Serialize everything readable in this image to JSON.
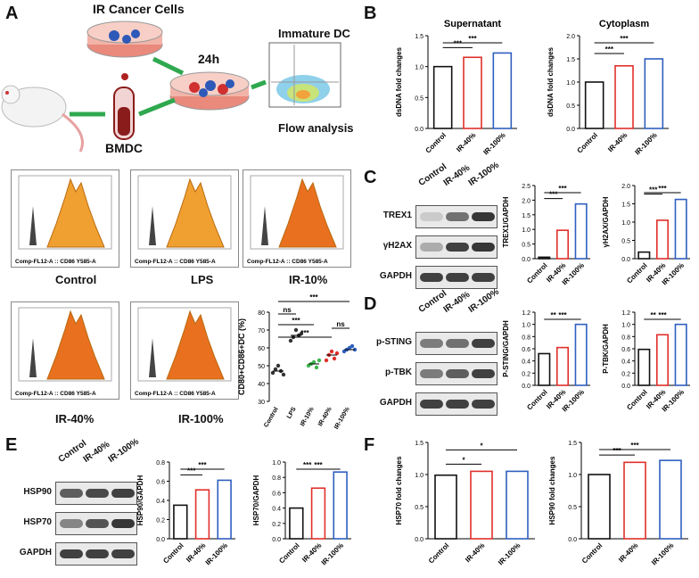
{
  "colors": {
    "control": "#111111",
    "ir40": "#e0302b",
    "ir100": "#2f5fbf",
    "arrow": "#2fa84f",
    "lps": "#333333",
    "ir10": "#3fb34f"
  },
  "panelA": {
    "letter": "A",
    "labels": {
      "cells": "IR Cancer Cells",
      "time": "24h",
      "bmdc": "BMDC",
      "idc": "Immature DC",
      "flow": "Flow analysis"
    },
    "histograms": [
      {
        "label": "Control",
        "axis": "Comp-FL12-A :: CD86 Y585-A"
      },
      {
        "label": "LPS",
        "axis": "Comp-FL12-A :: CD86 Y585-A"
      },
      {
        "label": "IR-10%",
        "axis": "Comp-FL12-A :: CD86 Y585-A"
      },
      {
        "label": "IR-40%",
        "axis": "Comp-FL12-A :: CD86 Y585-A"
      },
      {
        "label": "IR-100%",
        "axis": "Comp-FL12-A :: CD86 Y585-A"
      }
    ],
    "scatter": {
      "ylabel": "CD80+CD86+DC (%)",
      "ylim": [
        30,
        80
      ],
      "yticks": [
        "30",
        "40",
        "50",
        "60",
        "70",
        "80"
      ],
      "groups": [
        "Control",
        "LPS",
        "IR-10%",
        "IR-40%",
        "IR-100%"
      ],
      "points": [
        [
          46,
          48,
          50,
          47,
          45
        ],
        [
          64,
          66,
          70,
          67,
          68
        ],
        [
          50,
          51,
          52,
          49,
          53
        ],
        [
          53,
          56,
          58,
          54,
          57
        ],
        [
          58,
          59,
          60,
          61,
          59
        ]
      ],
      "means": [
        47,
        67,
        51,
        56,
        59
      ],
      "sig": [
        "***",
        "ns",
        "***",
        "***",
        "ns"
      ]
    }
  },
  "panelB": {
    "letter": "B",
    "charts": [
      {
        "title": "Supernatant",
        "ylabel": "dsDNA fold changes",
        "ylim": [
          0,
          1.5
        ],
        "yticks": [
          "0.0",
          "0.5",
          "1.0",
          "1.5"
        ],
        "categories": [
          "Control",
          "IR-40%",
          "IR-100%"
        ],
        "values": [
          1.0,
          1.15,
          1.22
        ],
        "sig": [
          "***",
          "***"
        ]
      },
      {
        "title": "Cytoplasm",
        "ylabel": "dsDNA fold changes",
        "ylim": [
          0,
          2.0
        ],
        "yticks": [
          "0.0",
          "0.5",
          "1.0",
          "1.5",
          "2.0"
        ],
        "categories": [
          "Control",
          "IR-40%",
          "IR-100%"
        ],
        "values": [
          1.0,
          1.35,
          1.5
        ],
        "sig": [
          "***",
          "***"
        ]
      }
    ]
  },
  "panelC": {
    "letter": "C",
    "lanes": [
      "Control",
      "IR-40%",
      "IR-100%"
    ],
    "blots": [
      "TREX1",
      "γH2AX",
      "GAPDH"
    ],
    "charts": [
      {
        "ylabel": "TREX1/GAPDH",
        "ylim": [
          0,
          2.5
        ],
        "yticks": [
          "0.0",
          "0.5",
          "1.0",
          "1.5",
          "2.0",
          "2.5"
        ],
        "categories": [
          "Control",
          "IR-40%",
          "IR-100%"
        ],
        "values": [
          0.05,
          0.97,
          1.87
        ],
        "sig": [
          "***",
          "***"
        ]
      },
      {
        "ylabel": "γH2AX/GAPDH",
        "ylim": [
          0,
          2.0
        ],
        "yticks": [
          "0.0",
          "0.5",
          "1.0",
          "1.5",
          "2.0"
        ],
        "categories": [
          "Control",
          "IR-40%",
          "IR-100%"
        ],
        "values": [
          0.18,
          1.05,
          1.62
        ],
        "sig": [
          "***",
          "***"
        ]
      }
    ]
  },
  "panelD": {
    "letter": "D",
    "lanes": [
      "Control",
      "IR-40%",
      "IR-100%"
    ],
    "blots": [
      "p-STING",
      "p-TBK",
      "GAPDH"
    ],
    "charts": [
      {
        "ylabel": "P-STING/GAPDH",
        "ylim": [
          0,
          1.2
        ],
        "yticks": [
          "0.0",
          "0.2",
          "0.4",
          "0.6",
          "0.8",
          "1.0",
          "1.2"
        ],
        "categories": [
          "Control",
          "IR-40%",
          "IR-100%"
        ],
        "values": [
          0.52,
          0.62,
          1.0
        ],
        "sig": [
          "**",
          "***"
        ]
      },
      {
        "ylabel": "P-TBK/GAPDH",
        "ylim": [
          0,
          1.2
        ],
        "yticks": [
          "0.0",
          "0.2",
          "0.4",
          "0.6",
          "0.8",
          "1.0",
          "1.2"
        ],
        "categories": [
          "Control",
          "IR-40%",
          "IR-100%"
        ],
        "values": [
          0.59,
          0.83,
          1.0
        ],
        "sig": [
          "**",
          "***"
        ]
      }
    ]
  },
  "panelE": {
    "letter": "E",
    "lanes": [
      "Control",
      "IR-40%",
      "IR-100%"
    ],
    "blots": [
      "HSP90",
      "HSP70",
      "GAPDH"
    ],
    "charts": [
      {
        "ylabel": "HSP90/GAPDH",
        "ylim": [
          0,
          0.8
        ],
        "yticks": [
          "0.0",
          "0.2",
          "0.4",
          "0.6",
          "0.8"
        ],
        "categories": [
          "Control",
          "IR-40%",
          "IR-100%"
        ],
        "values": [
          0.35,
          0.51,
          0.61
        ],
        "sig": [
          "***",
          "***"
        ]
      },
      {
        "ylabel": "HSP70/GAPDH",
        "ylim": [
          0,
          1.0
        ],
        "yticks": [
          "0.0",
          "0.2",
          "0.4",
          "0.6",
          "0.8",
          "1.0"
        ],
        "categories": [
          "Control",
          "IR-40%",
          "IR-100%"
        ],
        "values": [
          0.4,
          0.66,
          0.87
        ],
        "sig": [
          "***",
          "***"
        ]
      }
    ]
  },
  "panelF": {
    "letter": "F",
    "charts": [
      {
        "ylabel": "HSP70 fold changes",
        "ylim": [
          0,
          1.5
        ],
        "yticks": [
          "0.0",
          "0.5",
          "1.0",
          "1.5"
        ],
        "categories": [
          "Control",
          "IR-40%",
          "IR-100%"
        ],
        "values": [
          0.99,
          1.05,
          1.05
        ],
        "sig": [
          "*",
          "*"
        ]
      },
      {
        "ylabel": "HSP90 fold changes",
        "ylim": [
          0,
          1.5
        ],
        "yticks": [
          "0.0",
          "0.5",
          "1.0",
          "1.5"
        ],
        "categories": [
          "Control",
          "IR-40%",
          "IR-100%"
        ],
        "values": [
          1.0,
          1.19,
          1.22
        ],
        "sig": [
          "***",
          "***"
        ]
      }
    ]
  },
  "chart_data": [
    {
      "type": "scatter",
      "title": "",
      "ylabel": "CD80+CD86+DC (%)",
      "categories": [
        "Control",
        "LPS",
        "IR-10%",
        "IR-40%",
        "IR-100%"
      ],
      "means": [
        47,
        67,
        51,
        56,
        59
      ],
      "ylim": [
        30,
        80
      ]
    },
    {
      "type": "bar",
      "title": "Supernatant",
      "ylabel": "dsDNA fold changes",
      "categories": [
        "Control",
        "IR-40%",
        "IR-100%"
      ],
      "values": [
        1.0,
        1.15,
        1.22
      ],
      "ylim": [
        0,
        1.5
      ]
    },
    {
      "type": "bar",
      "title": "Cytoplasm",
      "ylabel": "dsDNA fold changes",
      "categories": [
        "Control",
        "IR-40%",
        "IR-100%"
      ],
      "values": [
        1.0,
        1.35,
        1.5
      ],
      "ylim": [
        0,
        2.0
      ]
    },
    {
      "type": "bar",
      "ylabel": "TREX1/GAPDH",
      "categories": [
        "Control",
        "IR-40%",
        "IR-100%"
      ],
      "values": [
        0.05,
        0.97,
        1.87
      ],
      "ylim": [
        0,
        2.5
      ]
    },
    {
      "type": "bar",
      "ylabel": "γH2AX/GAPDH",
      "categories": [
        "Control",
        "IR-40%",
        "IR-100%"
      ],
      "values": [
        0.18,
        1.05,
        1.62
      ],
      "ylim": [
        0,
        2.0
      ]
    },
    {
      "type": "bar",
      "ylabel": "P-STING/GAPDH",
      "categories": [
        "Control",
        "IR-40%",
        "IR-100%"
      ],
      "values": [
        0.52,
        0.62,
        1.0
      ],
      "ylim": [
        0,
        1.2
      ]
    },
    {
      "type": "bar",
      "ylabel": "P-TBK/GAPDH",
      "categories": [
        "Control",
        "IR-40%",
        "IR-100%"
      ],
      "values": [
        0.59,
        0.83,
        1.0
      ],
      "ylim": [
        0,
        1.2
      ]
    },
    {
      "type": "bar",
      "ylabel": "HSP90/GAPDH",
      "categories": [
        "Control",
        "IR-40%",
        "IR-100%"
      ],
      "values": [
        0.35,
        0.51,
        0.61
      ],
      "ylim": [
        0,
        0.8
      ]
    },
    {
      "type": "bar",
      "ylabel": "HSP70/GAPDH",
      "categories": [
        "Control",
        "IR-40%",
        "IR-100%"
      ],
      "values": [
        0.4,
        0.66,
        0.87
      ],
      "ylim": [
        0,
        1.0
      ]
    },
    {
      "type": "bar",
      "ylabel": "HSP70 fold changes",
      "categories": [
        "Control",
        "IR-40%",
        "IR-100%"
      ],
      "values": [
        0.99,
        1.05,
        1.05
      ],
      "ylim": [
        0,
        1.5
      ]
    },
    {
      "type": "bar",
      "ylabel": "HSP90 fold changes",
      "categories": [
        "Control",
        "IR-40%",
        "IR-100%"
      ],
      "values": [
        1.0,
        1.19,
        1.22
      ],
      "ylim": [
        0,
        1.5
      ]
    }
  ]
}
